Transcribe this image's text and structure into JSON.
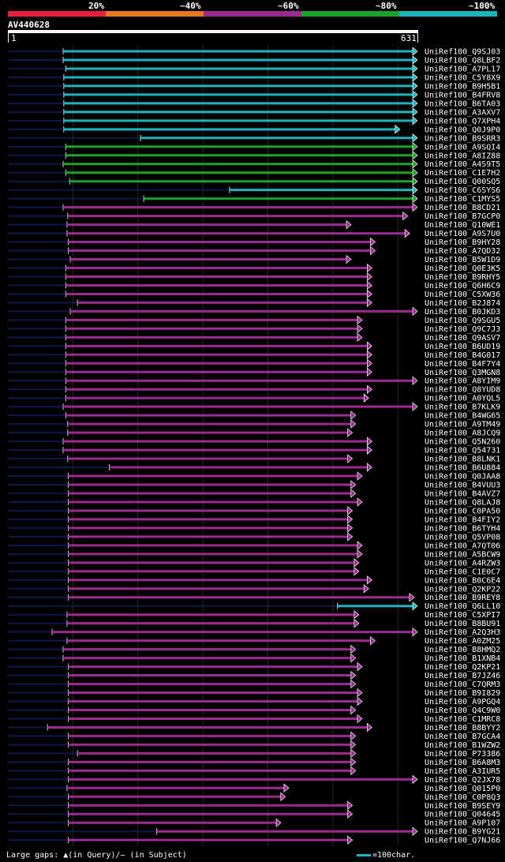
{
  "legend": {
    "labels": [
      "20%",
      "~40%",
      "~60%",
      "~80%",
      "~100%"
    ],
    "colors": [
      "#e8203c",
      "#e87a1e",
      "#9c2a92",
      "#1ea32a",
      "#1ab6c0"
    ]
  },
  "query": {
    "name": "AV440628",
    "start": "1",
    "end": "631",
    "length": 631
  },
  "footer": {
    "gaps_text": "Large gaps: ▲(in Query)/– (in Subject)",
    "scale_text": "=100char."
  },
  "colors": {
    "cyan": "#1ab6c0",
    "green": "#1ea32a",
    "purple": "#9c2a92",
    "background": "#000000",
    "marker": "#f5f5a0"
  },
  "hits": [
    {
      "name": "UniRef100_Q9SJ03",
      "color": "cyan",
      "start": 86,
      "end": 631
    },
    {
      "name": "UniRef100_Q8LBF2",
      "color": "cyan",
      "start": 86,
      "end": 631
    },
    {
      "name": "UniRef100_A7PL17",
      "color": "cyan",
      "start": 90,
      "end": 631
    },
    {
      "name": "UniRef100_C5Y8X9",
      "color": "cyan",
      "start": 87,
      "end": 631
    },
    {
      "name": "UniRef100_B9H5B1",
      "color": "cyan",
      "start": 87,
      "end": 631
    },
    {
      "name": "UniRef100_B4FRV8",
      "color": "cyan",
      "start": 87,
      "end": 631
    },
    {
      "name": "UniRef100_B6TA03",
      "color": "cyan",
      "start": 87,
      "end": 631
    },
    {
      "name": "UniRef100_A3AXV7",
      "color": "cyan",
      "start": 87,
      "end": 631
    },
    {
      "name": "UniRef100_Q7XPH4",
      "color": "cyan",
      "start": 87,
      "end": 631
    },
    {
      "name": "UniRef100_Q0J9P0",
      "color": "cyan",
      "start": 87,
      "end": 604
    },
    {
      "name": "UniRef100_B9SRR3",
      "color": "cyan",
      "start": 205,
      "end": 631
    },
    {
      "name": "UniRef100_A9SQI4",
      "color": "green",
      "start": 90,
      "end": 631
    },
    {
      "name": "UniRef100_A8IZ88",
      "color": "green",
      "start": 90,
      "end": 631
    },
    {
      "name": "UniRef100_A4S9T5",
      "color": "green",
      "start": 86,
      "end": 631
    },
    {
      "name": "UniRef100_C1E7H2",
      "color": "green",
      "start": 90,
      "end": 631
    },
    {
      "name": "UniRef100_Q00SQ5",
      "color": "green",
      "start": 96,
      "end": 631
    },
    {
      "name": "UniRef100_C6SYS6",
      "color": "cyan",
      "start": 342,
      "end": 631
    },
    {
      "name": "UniRef100_C1MYS5",
      "color": "green",
      "start": 210,
      "end": 631
    },
    {
      "name": "UniRef100_B8CD21",
      "color": "purple",
      "start": 86,
      "end": 631
    },
    {
      "name": "UniRef100_B7GCP0",
      "color": "purple",
      "start": 93,
      "end": 616
    },
    {
      "name": "UniRef100_Q10WE1",
      "color": "purple",
      "start": 92,
      "end": 529
    },
    {
      "name": "UniRef100_A9S7U0",
      "color": "purple",
      "start": 92,
      "end": 619
    },
    {
      "name": "UniRef100_B9HY28",
      "color": "purple",
      "start": 94,
      "end": 566
    },
    {
      "name": "UniRef100_A7QD32",
      "color": "purple",
      "start": 94,
      "end": 566
    },
    {
      "name": "UniRef100_B5W1D9",
      "color": "purple",
      "start": 97,
      "end": 529
    },
    {
      "name": "UniRef100_Q0E3K5",
      "color": "purple",
      "start": 90,
      "end": 561
    },
    {
      "name": "UniRef100_B9RHY5",
      "color": "purple",
      "start": 90,
      "end": 561
    },
    {
      "name": "UniRef100_Q6H6C9",
      "color": "purple",
      "start": 90,
      "end": 561
    },
    {
      "name": "UniRef100_C5XW36",
      "color": "purple",
      "start": 90,
      "end": 561
    },
    {
      "name": "UniRef100_B2J874",
      "color": "purple",
      "start": 108,
      "end": 561
    },
    {
      "name": "UniRef100_B0JKD3",
      "color": "purple",
      "start": 97,
      "end": 631
    },
    {
      "name": "UniRef100_Q9SGU5",
      "color": "purple",
      "start": 90,
      "end": 546
    },
    {
      "name": "UniRef100_Q9C7J3",
      "color": "purple",
      "start": 90,
      "end": 546
    },
    {
      "name": "UniRef100_Q9ASV7",
      "color": "purple",
      "start": 90,
      "end": 546
    },
    {
      "name": "UniRef100_B6UD19",
      "color": "purple",
      "start": 90,
      "end": 561
    },
    {
      "name": "UniRef100_B4G017",
      "color": "purple",
      "start": 90,
      "end": 561
    },
    {
      "name": "UniRef100_B4F7Y4",
      "color": "purple",
      "start": 90,
      "end": 561
    },
    {
      "name": "UniRef100_Q3MGN8",
      "color": "purple",
      "start": 90,
      "end": 561
    },
    {
      "name": "UniRef100_A8YIM9",
      "color": "purple",
      "start": 90,
      "end": 631
    },
    {
      "name": "UniRef100_Q8YUD8",
      "color": "purple",
      "start": 90,
      "end": 561
    },
    {
      "name": "UniRef100_A0YQL5",
      "color": "purple",
      "start": 90,
      "end": 556
    },
    {
      "name": "UniRef100_B7KLK9",
      "color": "purple",
      "start": 86,
      "end": 631
    },
    {
      "name": "UniRef100_B4WG65",
      "color": "purple",
      "start": 90,
      "end": 536
    },
    {
      "name": "UniRef100_A9TM49",
      "color": "purple",
      "start": 93,
      "end": 536
    },
    {
      "name": "UniRef100_A8JCQ9",
      "color": "purple",
      "start": 93,
      "end": 531
    },
    {
      "name": "UniRef100_Q5N260",
      "color": "purple",
      "start": 86,
      "end": 561
    },
    {
      "name": "UniRef100_Q54731",
      "color": "purple",
      "start": 86,
      "end": 561
    },
    {
      "name": "UniRef100_B8LNK1",
      "color": "purple",
      "start": 93,
      "end": 531
    },
    {
      "name": "UniRef100_B6U884",
      "color": "purple",
      "start": 157,
      "end": 561
    },
    {
      "name": "UniRef100_Q0JAA8",
      "color": "purple",
      "start": 94,
      "end": 546
    },
    {
      "name": "UniRef100_B4VUU3",
      "color": "purple",
      "start": 94,
      "end": 536
    },
    {
      "name": "UniRef100_B4AVZ7",
      "color": "purple",
      "start": 94,
      "end": 536
    },
    {
      "name": "UniRef100_Q8LAJ8",
      "color": "purple",
      "start": 94,
      "end": 546
    },
    {
      "name": "UniRef100_C0PA50",
      "color": "purple",
      "start": 94,
      "end": 531
    },
    {
      "name": "UniRef100_B4FIY2",
      "color": "purple",
      "start": 94,
      "end": 531
    },
    {
      "name": "UniRef100_B6TYH4",
      "color": "purple",
      "start": 94,
      "end": 531
    },
    {
      "name": "UniRef100_Q5VP08",
      "color": "purple",
      "start": 94,
      "end": 531
    },
    {
      "name": "UniRef100_A7QT06",
      "color": "purple",
      "start": 94,
      "end": 546
    },
    {
      "name": "UniRef100_A5BCW9",
      "color": "purple",
      "start": 94,
      "end": 546
    },
    {
      "name": "UniRef100_A4RZW3",
      "color": "purple",
      "start": 94,
      "end": 541
    },
    {
      "name": "UniRef100_C1E0C7",
      "color": "purple",
      "start": 94,
      "end": 541
    },
    {
      "name": "UniRef100_B0C6E4",
      "color": "purple",
      "start": 94,
      "end": 561
    },
    {
      "name": "UniRef100_Q2KP22",
      "color": "purple",
      "start": 94,
      "end": 556
    },
    {
      "name": "UniRef100_B9REY8",
      "color": "purple",
      "start": 94,
      "end": 626
    },
    {
      "name": "UniRef100_Q6LL10",
      "color": "cyan",
      "start": 508,
      "end": 631
    },
    {
      "name": "UniRef100_C5XPI7",
      "color": "purple",
      "start": 92,
      "end": 541
    },
    {
      "name": "UniRef100_B8BU91",
      "color": "purple",
      "start": 92,
      "end": 541
    },
    {
      "name": "UniRef100_A2Q3H3",
      "color": "purple",
      "start": 69,
      "end": 631
    },
    {
      "name": "UniRef100_A0ZM25",
      "color": "purple",
      "start": 92,
      "end": 566
    },
    {
      "name": "UniRef100_B8HMQ2",
      "color": "purple",
      "start": 86,
      "end": 536
    },
    {
      "name": "UniRef100_B1XNB4",
      "color": "purple",
      "start": 86,
      "end": 536
    },
    {
      "name": "UniRef100_Q2KP21",
      "color": "purple",
      "start": 94,
      "end": 546
    },
    {
      "name": "UniRef100_B7JZ46",
      "color": "purple",
      "start": 94,
      "end": 536
    },
    {
      "name": "UniRef100_C7QRM3",
      "color": "purple",
      "start": 94,
      "end": 536
    },
    {
      "name": "UniRef100_B9I829",
      "color": "purple",
      "start": 94,
      "end": 546
    },
    {
      "name": "UniRef100_A9PGQ4",
      "color": "purple",
      "start": 94,
      "end": 546
    },
    {
      "name": "UniRef100_Q4C9W0",
      "color": "purple",
      "start": 94,
      "end": 536
    },
    {
      "name": "UniRef100_C1MRC8",
      "color": "purple",
      "start": 94,
      "end": 546
    },
    {
      "name": "UniRef100_B8BYY2",
      "color": "purple",
      "start": 62,
      "end": 561
    },
    {
      "name": "UniRef100_B7GCA4",
      "color": "purple",
      "start": 94,
      "end": 536
    },
    {
      "name": "UniRef100_B1WZW2",
      "color": "purple",
      "start": 94,
      "end": 536
    },
    {
      "name": "UniRef100_P73386",
      "color": "purple",
      "start": 108,
      "end": 536
    },
    {
      "name": "UniRef100_B6A8M3",
      "color": "purple",
      "start": 94,
      "end": 536
    },
    {
      "name": "UniRef100_A3IUR5",
      "color": "purple",
      "start": 94,
      "end": 536
    },
    {
      "name": "UniRef100_Q2JX78",
      "color": "purple",
      "start": 94,
      "end": 631
    },
    {
      "name": "UniRef100_Q015P0",
      "color": "purple",
      "start": 92,
      "end": 433
    },
    {
      "name": "UniRef100_C0P8Q3",
      "color": "purple",
      "start": 94,
      "end": 428
    },
    {
      "name": "UniRef100_B9SEY9",
      "color": "purple",
      "start": 94,
      "end": 531
    },
    {
      "name": "UniRef100_Q04645",
      "color": "purple",
      "start": 94,
      "end": 531
    },
    {
      "name": "UniRef100_A9P107",
      "color": "purple",
      "start": 94,
      "end": 421
    },
    {
      "name": "UniRef100_B9YG21",
      "color": "purple",
      "start": 230,
      "end": 631
    },
    {
      "name": "UniRef100_Q7NJ66",
      "color": "purple",
      "start": 94,
      "end": 531
    }
  ]
}
